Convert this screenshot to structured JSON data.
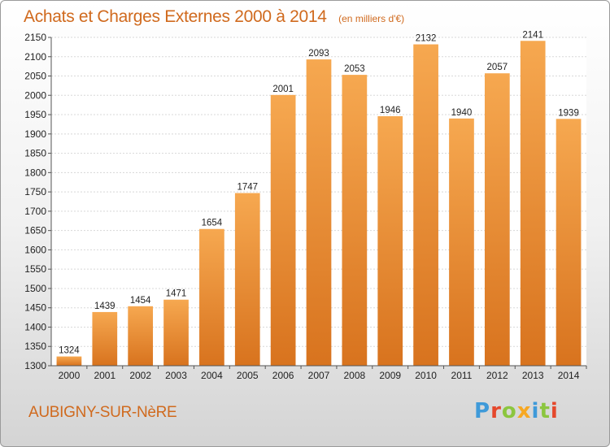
{
  "chart_data": {
    "type": "bar",
    "title": "Achats et Charges Externes 2000 à 2014",
    "subtitle": "(en milliers d'€)",
    "categories": [
      "2000",
      "2001",
      "2002",
      "2003",
      "2004",
      "2005",
      "2006",
      "2007",
      "2008",
      "2009",
      "2010",
      "2011",
      "2012",
      "2013",
      "2014"
    ],
    "values": [
      1324,
      1439,
      1454,
      1471,
      1654,
      1747,
      2001,
      2093,
      2053,
      1946,
      2132,
      1940,
      2057,
      2141,
      1939
    ],
    "ylim": [
      1300,
      2150
    ],
    "yticks": [
      1300,
      1350,
      1400,
      1450,
      1500,
      1550,
      1600,
      1650,
      1700,
      1750,
      1800,
      1850,
      1900,
      1950,
      2000,
      2050,
      2100,
      2150
    ],
    "grid": true,
    "colors": {
      "bar_light": "#f6a850",
      "bar_dark": "#d8731e",
      "title": "#d06a1e"
    }
  },
  "footer": {
    "commune": "AUBIGNY-SUR-NèRE",
    "logo": [
      {
        "char": "P",
        "color": "#3f9ad9"
      },
      {
        "char": "r",
        "color": "#e5482c"
      },
      {
        "char": "o",
        "color": "#8cc63f"
      },
      {
        "char": "x",
        "color": "#f7a823"
      },
      {
        "char": "i",
        "color": "#3f9ad9"
      },
      {
        "char": "t",
        "color": "#8cc63f"
      },
      {
        "char": "i",
        "color": "#e5482c"
      }
    ]
  }
}
